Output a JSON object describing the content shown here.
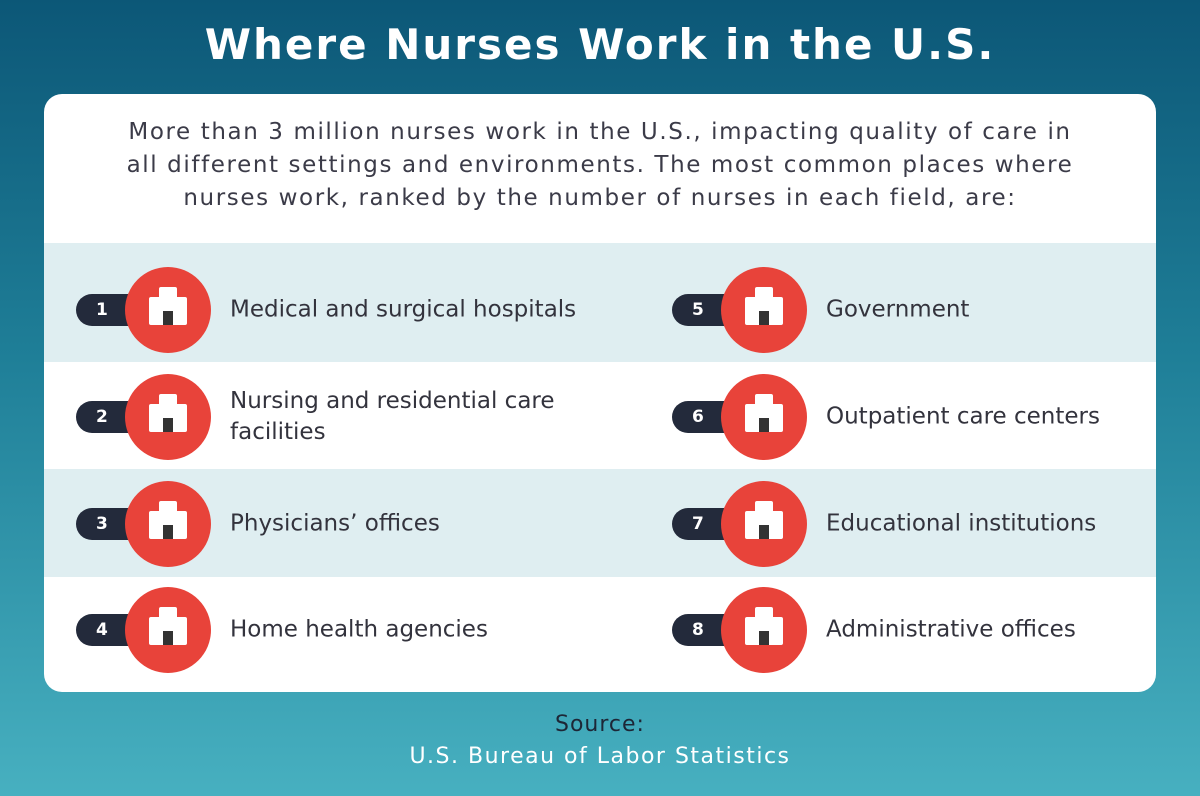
{
  "title": "Where Nurses Work in the U.S.",
  "intro": "More than 3 million nurses work in the U.S., impacting quality of care in all different settings and environments. The most common places where nurses work, ranked by the number of nurses in each field, are:",
  "items": [
    {
      "rank": 1,
      "label": "Medical and surgical hospitals"
    },
    {
      "rank": 2,
      "label": "Nursing and residential care facilities"
    },
    {
      "rank": 3,
      "label": "Physicians’ offices"
    },
    {
      "rank": 4,
      "label": "Home health agencies"
    },
    {
      "rank": 5,
      "label": "Government"
    },
    {
      "rank": 6,
      "label": "Outpatient care centers"
    },
    {
      "rank": 7,
      "label": "Educational institutions"
    },
    {
      "rank": 8,
      "label": "Administrative offices"
    }
  ],
  "source": {
    "heading": "Source:",
    "text": "U.S. Bureau of Labor Statistics"
  }
}
